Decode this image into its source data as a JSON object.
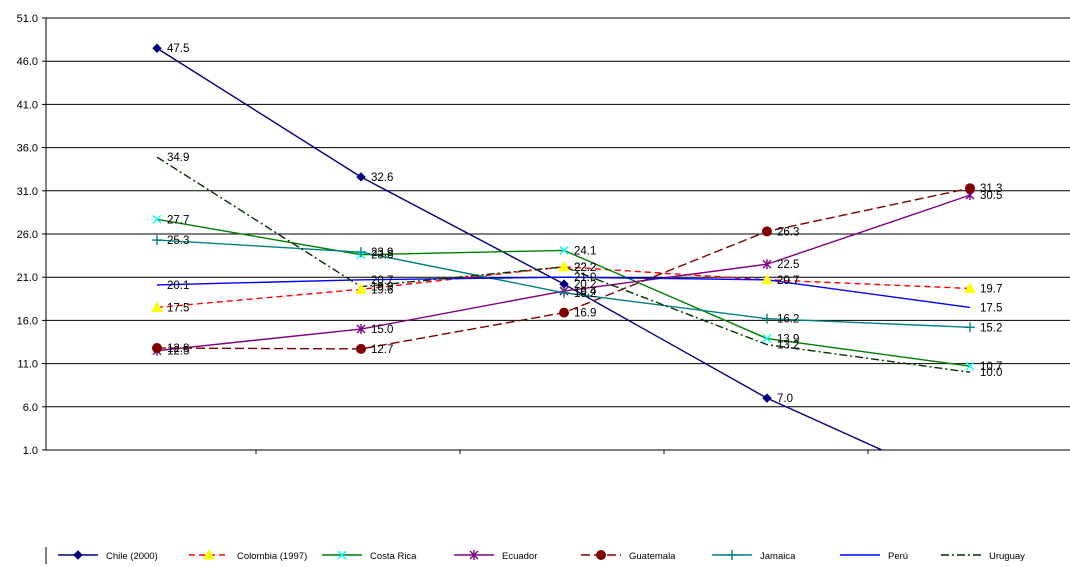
{
  "chart_data": {
    "type": "line",
    "title": "",
    "xlabel": "",
    "ylabel": "",
    "categories": [
      "",
      "",
      "",
      "",
      ""
    ],
    "ylim": [
      1.0,
      51.0
    ],
    "y_ticks": [
      "51.0",
      "46.0",
      "41.0",
      "36.0",
      "31.0",
      "26.0",
      "21.0",
      "16.0",
      "11.0",
      "6.0",
      "1.0"
    ],
    "grid": true,
    "legend_position": "bottom",
    "series": [
      {
        "name": "Chile (2000)",
        "color": "#000080",
        "dash": "",
        "marker": "diamond",
        "values": [
          47.5,
          32.6,
          20.2,
          7.0,
          -3.6
        ],
        "labels": [
          "47.5",
          "32.6",
          "20.2",
          "7.0",
          ""
        ]
      },
      {
        "name": "Colombia (1997)",
        "color": "#FF0000",
        "dash": "6,4",
        "marker": "triangle",
        "values": [
          17.5,
          19.6,
          22.2,
          20.7,
          19.7
        ],
        "labels": [
          "17.5",
          "19.6",
          "22.2",
          "20.7",
          "19.7"
        ]
      },
      {
        "name": "Costa Rica",
        "color": "#008000",
        "dash": "",
        "marker": "xstar",
        "values": [
          27.7,
          23.6,
          24.1,
          13.9,
          10.7
        ],
        "labels": [
          "27.7",
          "23.6",
          "24.1",
          "13.9",
          "10.7"
        ]
      },
      {
        "name": "Ecuador",
        "color": "#800080",
        "dash": "",
        "marker": "asterisk",
        "values": [
          12.5,
          15.0,
          19.4,
          22.5,
          30.5
        ],
        "labels": [
          "12.5",
          "15.0",
          "19.4",
          "22.5",
          "30.5"
        ]
      },
      {
        "name": "Guatemala",
        "color": "#800000",
        "dash": "9,4",
        "marker": "circle",
        "values": [
          12.8,
          12.7,
          16.9,
          26.3,
          31.3
        ],
        "labels": [
          "12.8",
          "12.7",
          "16.9",
          "26.3",
          "31.3"
        ]
      },
      {
        "name": "Jamaica",
        "color": "#008080",
        "dash": "",
        "marker": "plus",
        "values": [
          25.3,
          23.9,
          19.2,
          16.2,
          15.2
        ],
        "labels": [
          "25.3",
          "23.9",
          "19.2",
          "16.2",
          "15.2"
        ]
      },
      {
        "name": "Perú",
        "color": "#0000FF",
        "dash": "",
        "marker": "none",
        "values": [
          20.1,
          20.7,
          21.0,
          20.7,
          17.5
        ],
        "labels": [
          "20.1",
          "20.7",
          "21.0",
          "20.7",
          "17.5"
        ]
      },
      {
        "name": "Uruguay",
        "color": "#003300",
        "dash": "8,3,2,3",
        "marker": "none",
        "values": [
          34.9,
          19.9,
          22.2,
          13.2,
          10.0
        ],
        "labels": [
          "34.9",
          "19.9",
          "22.2",
          "13.2",
          "10.0"
        ]
      }
    ]
  }
}
